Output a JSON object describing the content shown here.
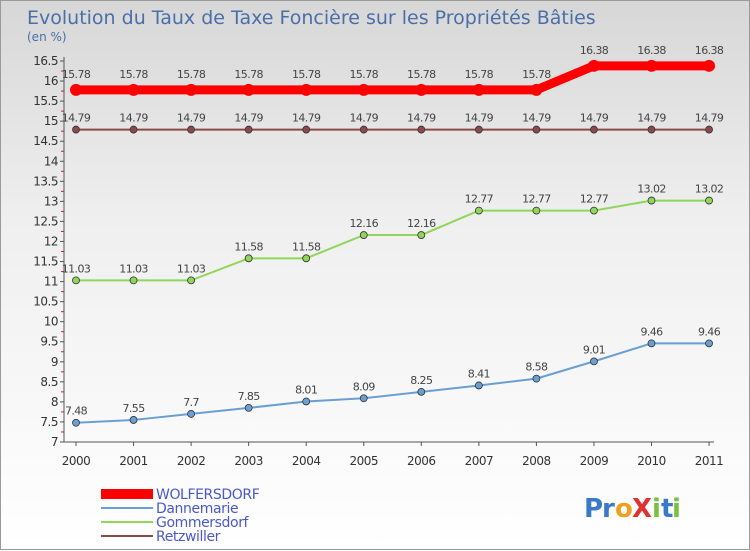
{
  "chart_data": {
    "type": "line",
    "title": "Evolution du Taux de Taxe Foncière sur les Propriétés Bâties",
    "ylabel": "(en %)",
    "xlabel": "",
    "ylim": [
      7,
      16.5
    ],
    "yticks": [
      "7",
      "7.5",
      "8",
      "8.5",
      "9",
      "9.5",
      "10",
      "10.5",
      "11",
      "11.5",
      "12",
      "12.5",
      "13",
      "13.5",
      "14",
      "14.5",
      "15",
      "15.5",
      "16",
      "16.5"
    ],
    "categories": [
      "2000",
      "2001",
      "2002",
      "2003",
      "2004",
      "2005",
      "2006",
      "2007",
      "2008",
      "2009",
      "2010",
      "2011"
    ],
    "grid": false,
    "legend_position": "bottom-left",
    "series": [
      {
        "name": "WOLFERSDORF",
        "color": "#ff0000",
        "values": [
          15.78,
          15.78,
          15.78,
          15.78,
          15.78,
          15.78,
          15.78,
          15.78,
          15.78,
          16.38,
          16.38,
          16.38
        ],
        "labels": [
          "15.78",
          "15.78",
          "15.78",
          "15.78",
          "15.78",
          "15.78",
          "15.78",
          "15.78",
          "15.78",
          "16.38",
          "16.38",
          "16.38"
        ]
      },
      {
        "name": "Dannemarie",
        "color": "#6a9fd4",
        "values": [
          7.48,
          7.55,
          7.7,
          7.85,
          8.01,
          8.09,
          8.25,
          8.41,
          8.58,
          9.01,
          9.46,
          9.46
        ],
        "labels": [
          "7.48",
          "7.55",
          "7.7",
          "7.85",
          "8.01",
          "8.09",
          "8.25",
          "8.41",
          "8.58",
          "9.01",
          "9.46",
          "9.46"
        ]
      },
      {
        "name": "Gommersdorf",
        "color": "#8fd65a",
        "values": [
          11.03,
          11.03,
          11.03,
          11.58,
          11.58,
          12.16,
          12.16,
          12.77,
          12.77,
          12.77,
          13.02,
          13.02
        ],
        "labels": [
          "11.03",
          "11.03",
          "11.03",
          "11.58",
          "11.58",
          "12.16",
          "12.16",
          "12.77",
          "12.77",
          "12.77",
          "13.02",
          "13.02"
        ]
      },
      {
        "name": "Retzwiller",
        "color": "#8a4a4a",
        "values": [
          14.79,
          14.79,
          14.79,
          14.79,
          14.79,
          14.79,
          14.79,
          14.79,
          14.79,
          14.79,
          14.79,
          14.79
        ],
        "labels": [
          "14.79",
          "14.79",
          "14.79",
          "14.79",
          "14.79",
          "14.79",
          "14.79",
          "14.79",
          "14.79",
          "14.79",
          "14.79",
          "14.79"
        ]
      }
    ]
  },
  "logo": {
    "text": "ProXiti",
    "letters": [
      "P",
      "r",
      "o",
      "X",
      "i",
      "t",
      "i"
    ],
    "colors": [
      "#3a78c8",
      "#3a78c8",
      "#f0a020",
      "#e03030",
      "#7ac040",
      "#3a78c8",
      "#7ac040"
    ]
  }
}
